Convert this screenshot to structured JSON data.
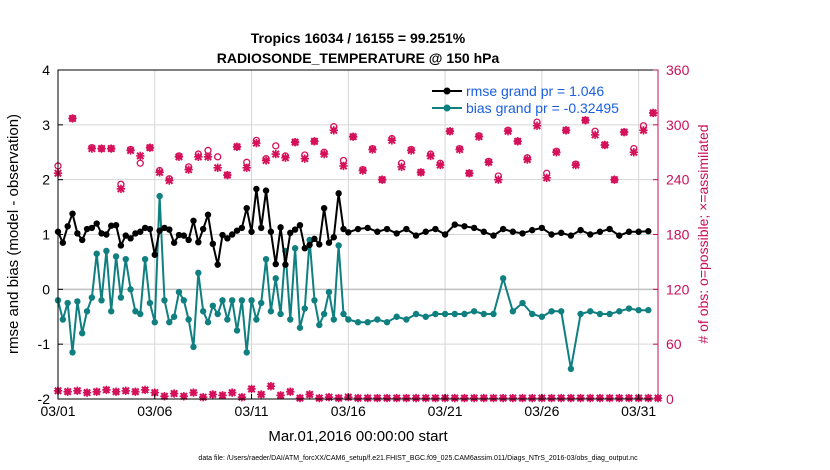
{
  "chart_data": {
    "type": "line",
    "title": "Tropics 16034 / 16155 = 99.251%",
    "subtitle": "RADIOSONDE_TEMPERATURE @ 150 hPa",
    "xlabel": "Mar.01,2016 00:00:00 start",
    "ylabel": "rmse and bias (model - observation)",
    "ylabel_right": "# of obs: o=possible; ×=assimilated",
    "footnote": "data file: /Users/raeder/DAI/ATM_forcXX/CAM6_setup/f.e21.FHIST_BGC.f09_025.CAM6assim.011/Diags_NTrS_2016-03/obs_diag_output.nc",
    "x_tick_labels": [
      "03/01",
      "03/06",
      "03/11",
      "03/16",
      "03/21",
      "03/26",
      "03/31"
    ],
    "x_tick_days": [
      0,
      5,
      10,
      15,
      20,
      25,
      30
    ],
    "xlim": [
      0,
      31
    ],
    "ylim": [
      -2,
      4
    ],
    "y_ticks": [
      4,
      3,
      2,
      1,
      0,
      -1,
      -2
    ],
    "ylim_right": [
      0,
      360
    ],
    "y_ticks_right": [
      360,
      300,
      240,
      180,
      120,
      60,
      0
    ],
    "legend": [
      "rmse grand pr = 1.046",
      "bias grand pr = -0.32495"
    ],
    "legend_position": "top-right",
    "colors": {
      "rmse": "#000000",
      "bias": "#0f7f80",
      "obs": "#d4115a",
      "zero_line": "#c0c0c0"
    },
    "series": [
      {
        "name": "rmse",
        "x": [
          0.0,
          0.25,
          0.5,
          0.75,
          1.0,
          1.25,
          1.5,
          1.75,
          2.0,
          2.25,
          2.5,
          2.75,
          3.0,
          3.25,
          3.5,
          3.75,
          4.0,
          4.25,
          4.5,
          4.75,
          5.0,
          5.25,
          5.5,
          5.75,
          6.0,
          6.25,
          6.5,
          6.75,
          7.0,
          7.25,
          7.5,
          7.75,
          8.0,
          8.25,
          8.5,
          8.75,
          9.0,
          9.25,
          9.5,
          9.75,
          10.0,
          10.25,
          10.5,
          10.75,
          11.0,
          11.25,
          11.5,
          11.75,
          12.0,
          12.25,
          12.5,
          12.75,
          13.0,
          13.25,
          13.5,
          13.75,
          14.0,
          14.25,
          14.5,
          14.75,
          15.0,
          15.5,
          16.0,
          16.5,
          17.0,
          17.5,
          18.0,
          18.5,
          19.0,
          19.5,
          20.0,
          20.5,
          21.0,
          21.5,
          22.0,
          22.5,
          23.0,
          23.5,
          24.0,
          24.5,
          25.0,
          25.5,
          26.0,
          26.5,
          27.0,
          27.5,
          28.0,
          28.5,
          29.0,
          29.5,
          30.0,
          30.5
        ],
        "values": [
          1.05,
          0.85,
          1.15,
          1.38,
          1.02,
          0.9,
          1.1,
          1.12,
          1.2,
          1.02,
          1.0,
          1.16,
          1.17,
          0.8,
          0.98,
          0.93,
          1.02,
          1.05,
          1.12,
          1.1,
          0.63,
          1.07,
          1.12,
          1.09,
          0.85,
          0.99,
          0.98,
          0.9,
          1.25,
          0.86,
          1.1,
          1.36,
          0.83,
          0.45,
          0.99,
          0.93,
          1.0,
          1.07,
          1.12,
          1.48,
          1.05,
          1.83,
          1.12,
          1.8,
          1.05,
          0.46,
          1.13,
          0.45,
          1.03,
          1.09,
          1.17,
          0.75,
          0.81,
          0.92,
          0.82,
          1.48,
          0.85,
          0.95,
          1.75,
          1.1,
          1.04,
          1.1,
          1.12,
          1.05,
          1.1,
          1.02,
          1.1,
          0.98,
          1.05,
          1.1,
          1.0,
          1.18,
          1.15,
          1.12,
          1.05,
          0.98,
          1.1,
          1.05,
          1.02,
          1.08,
          1.12,
          1.0,
          1.03,
          0.98,
          1.08,
          1.0,
          1.05,
          1.1,
          0.98,
          1.05,
          1.05,
          1.06
        ]
      },
      {
        "name": "bias",
        "x": [
          0.0,
          0.25,
          0.5,
          0.75,
          1.0,
          1.25,
          1.5,
          1.75,
          2.0,
          2.25,
          2.5,
          2.75,
          3.0,
          3.25,
          3.5,
          3.75,
          4.0,
          4.25,
          4.5,
          4.75,
          5.0,
          5.25,
          5.5,
          5.75,
          6.0,
          6.25,
          6.5,
          6.75,
          7.0,
          7.25,
          7.5,
          7.75,
          8.0,
          8.25,
          8.5,
          8.75,
          9.0,
          9.25,
          9.5,
          9.75,
          10.0,
          10.25,
          10.5,
          10.75,
          11.0,
          11.25,
          11.5,
          11.75,
          12.0,
          12.25,
          12.5,
          12.75,
          13.0,
          13.25,
          13.5,
          13.75,
          14.0,
          14.25,
          14.5,
          14.75,
          15.0,
          15.5,
          16.0,
          16.5,
          17.0,
          17.5,
          18.0,
          18.5,
          19.0,
          19.5,
          20.0,
          20.5,
          21.0,
          21.5,
          22.0,
          22.5,
          23.0,
          23.5,
          24.0,
          24.5,
          25.0,
          25.5,
          26.0,
          26.5,
          27.0,
          27.5,
          28.0,
          28.5,
          29.0,
          29.5,
          30.0,
          30.5
        ],
        "values": [
          -0.2,
          -0.55,
          -0.25,
          -1.15,
          -0.22,
          -0.8,
          -0.4,
          -0.15,
          0.65,
          -0.2,
          0.7,
          -0.4,
          0.6,
          -0.15,
          0.55,
          0.0,
          -0.4,
          -0.45,
          0.55,
          -0.25,
          -0.6,
          1.7,
          -0.2,
          -0.6,
          -0.5,
          -0.05,
          -0.2,
          -0.55,
          -1.05,
          0.3,
          -0.4,
          -0.6,
          -0.3,
          -0.45,
          -0.2,
          -0.55,
          -0.2,
          -0.75,
          -0.2,
          -1.15,
          -0.2,
          -0.55,
          -0.25,
          0.55,
          -0.4,
          0.2,
          -0.45,
          0.7,
          -0.55,
          0.75,
          -0.7,
          -0.35,
          0.9,
          -0.2,
          -0.65,
          -0.45,
          -0.05,
          -0.55,
          0.8,
          -0.45,
          -0.55,
          -0.6,
          -0.6,
          -0.55,
          -0.6,
          -0.5,
          -0.55,
          -0.45,
          -0.5,
          -0.45,
          -0.45,
          -0.45,
          -0.45,
          -0.4,
          -0.45,
          -0.45,
          0.2,
          -0.4,
          -0.25,
          -0.45,
          -0.5,
          -0.4,
          -0.4,
          -1.45,
          -0.45,
          -0.4,
          -0.45,
          -0.45,
          -0.4,
          -0.35,
          -0.38,
          -0.38
        ]
      },
      {
        "name": "obs possible",
        "x": [
          0.0,
          0.75,
          1.75,
          2.25,
          2.75,
          3.25,
          3.75,
          4.25,
          4.75,
          5.25,
          5.75,
          6.25,
          6.75,
          7.25,
          7.75,
          8.25,
          8.75,
          9.25,
          9.75,
          10.25,
          10.75,
          11.25,
          11.75,
          12.25,
          12.75,
          13.25,
          13.75,
          14.25,
          14.75,
          15.25,
          15.75,
          16.25,
          16.75,
          17.25,
          17.75,
          18.25,
          18.75,
          19.25,
          19.75,
          20.25,
          20.75,
          21.25,
          21.75,
          22.25,
          22.75,
          23.25,
          23.75,
          24.25,
          24.75,
          25.25,
          25.75,
          26.25,
          26.75,
          27.25,
          27.75,
          28.25,
          28.75,
          29.25,
          29.75,
          30.25,
          30.75
        ],
        "values": [
          255,
          307,
          275,
          274,
          274,
          235,
          273,
          258,
          275,
          250,
          241,
          266,
          254,
          268,
          272,
          265,
          245,
          276,
          259,
          283,
          263,
          277,
          266,
          281,
          267,
          282,
          270,
          298,
          261,
          287,
          251,
          274,
          240,
          285,
          258,
          273,
          248,
          268,
          258,
          293,
          274,
          247,
          288,
          260,
          244,
          294,
          282,
          264,
          303,
          247,
          271,
          294,
          257,
          305,
          293,
          278,
          240,
          292,
          274,
          299,
          313
        ]
      },
      {
        "name": "obs assimilated",
        "x": [
          0.0,
          0.75,
          1.75,
          2.25,
          2.75,
          3.25,
          3.75,
          4.25,
          4.75,
          5.25,
          5.75,
          6.25,
          6.75,
          7.25,
          7.75,
          8.25,
          8.75,
          9.25,
          9.75,
          10.25,
          10.75,
          11.25,
          11.75,
          12.25,
          12.75,
          13.25,
          13.75,
          14.25,
          14.75,
          15.25,
          15.75,
          16.25,
          16.75,
          17.25,
          17.75,
          18.25,
          18.75,
          19.25,
          19.75,
          20.25,
          20.75,
          21.25,
          21.75,
          22.25,
          22.75,
          23.25,
          23.75,
          24.25,
          24.75,
          25.25,
          25.75,
          26.25,
          26.75,
          27.25,
          27.75,
          28.25,
          28.75,
          29.25,
          29.75,
          30.25,
          30.75
        ],
        "values": [
          247,
          307,
          274,
          274,
          274,
          230,
          272,
          266,
          275,
          248,
          239,
          265,
          251,
          265,
          265,
          253,
          245,
          276,
          253,
          280,
          261,
          268,
          264,
          281,
          263,
          282,
          268,
          294,
          255,
          287,
          250,
          273,
          240,
          283,
          254,
          272,
          248,
          266,
          256,
          293,
          273,
          247,
          287,
          259,
          240,
          293,
          282,
          262,
          299,
          242,
          270,
          294,
          256,
          305,
          289,
          278,
          240,
          292,
          270,
          294,
          313
        ]
      },
      {
        "name": "obs low",
        "x": [
          0.0,
          0.5,
          1.0,
          1.5,
          2.0,
          2.5,
          3.0,
          3.5,
          4.0,
          4.5,
          5.0,
          5.5,
          6.0,
          6.5,
          7.0,
          7.5,
          8.0,
          8.5,
          9.0,
          9.5,
          10.0,
          10.5,
          11.0,
          11.5,
          12.0,
          12.5,
          13.0,
          13.5,
          14.0,
          14.5,
          15.0,
          15.5,
          16.0,
          16.5,
          17.0,
          17.5,
          18.0,
          18.5,
          19.0,
          19.5,
          20.0,
          20.5,
          21.0,
          21.5,
          22.0,
          22.5,
          23.0,
          23.5,
          24.0,
          24.5,
          25.0,
          25.5,
          26.0,
          26.5,
          27.0,
          27.5,
          28.0,
          28.5,
          29.0,
          29.5,
          30.0,
          30.5,
          31.0
        ],
        "values": [
          9,
          8,
          9,
          7,
          8,
          10,
          8,
          9,
          8,
          10,
          7,
          3,
          6,
          3,
          7,
          2,
          5,
          4,
          7,
          2,
          11,
          5,
          14,
          4,
          8,
          1,
          5,
          1,
          2,
          1,
          2,
          1,
          1,
          1,
          1,
          1,
          1,
          1,
          1,
          1,
          1,
          1,
          1,
          1,
          1,
          1,
          1,
          1,
          1,
          1,
          1,
          1,
          1,
          1,
          1,
          1,
          1,
          1,
          1,
          1,
          1,
          1,
          1
        ]
      }
    ]
  }
}
